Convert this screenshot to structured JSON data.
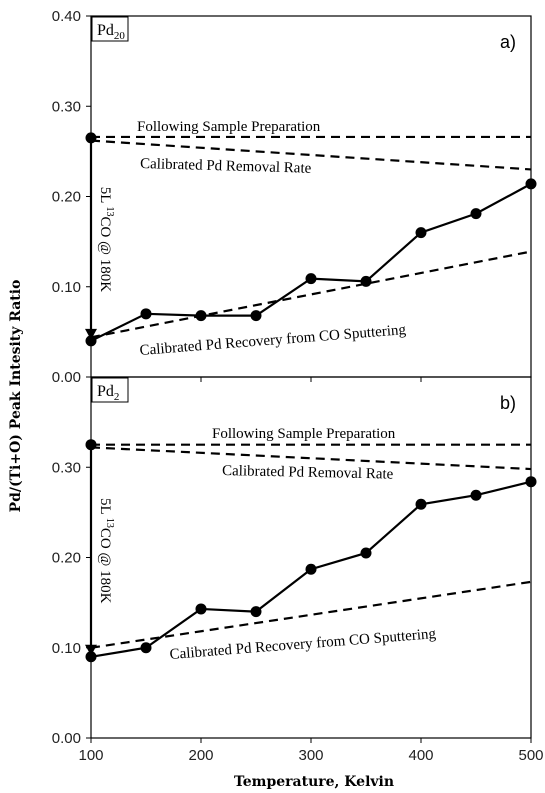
{
  "chart_data": [
    {
      "type": "line",
      "panel_label": "a)",
      "box_label": {
        "base": "Pd",
        "sub": "20"
      },
      "xlabel": "Temperature, Kelvin",
      "ylabel": "Pd/(Ti+O) Peak Intesity Ratio",
      "xlim": [
        100,
        500
      ],
      "ylim": [
        0,
        0.4
      ],
      "xticks": [
        "100",
        "200",
        "300",
        "400",
        "500"
      ],
      "yticks": [
        "0.00",
        "0.10",
        "0.20",
        "0.30",
        "0.40"
      ],
      "yticks_values": [
        0,
        0.1,
        0.2,
        0.3,
        0.4
      ],
      "series": [
        {
          "x": [
            100,
            100,
            150,
            200,
            250,
            300,
            350,
            400,
            450,
            500
          ],
          "y": [
            0.265,
            0.04,
            0.07,
            0.068,
            0.068,
            0.109,
            0.106,
            0.16,
            0.181,
            0.214
          ]
        }
      ],
      "reference_lines": [
        {
          "label": "Following Sample Preparation",
          "x": [
            100,
            500
          ],
          "y": [
            0.266,
            0.266
          ]
        },
        {
          "label": "Calibrated Pd Removal Rate",
          "x": [
            100,
            500
          ],
          "y": [
            0.262,
            0.23
          ]
        },
        {
          "label": "Calibrated Pd Recovery from CO Sputtering",
          "x": [
            100,
            500
          ],
          "y": [
            0.044,
            0.139
          ]
        }
      ],
      "arrow_annotation": {
        "prefix": "5L ",
        "sup": "13",
        "suffix": "CO @ 180K",
        "x": 100,
        "y_from": 0.265,
        "y_to": 0.04
      }
    },
    {
      "type": "line",
      "panel_label": "b)",
      "box_label": {
        "base": "Pd",
        "sub": "2"
      },
      "xlabel": "Temperature, Kelvin",
      "ylabel": "Pd/(Ti+O) Peak Intesity Ratio",
      "xlim": [
        100,
        500
      ],
      "ylim": [
        0,
        0.4
      ],
      "xticks": [
        "100",
        "200",
        "300",
        "400",
        "500"
      ],
      "yticks": [
        "0.00",
        "0.10",
        "0.20",
        "0.30"
      ],
      "yticks_values": [
        0,
        0.1,
        0.2,
        0.3
      ],
      "series": [
        {
          "x": [
            100,
            100,
            150,
            200,
            250,
            300,
            350,
            400,
            450,
            500
          ],
          "y": [
            0.325,
            0.09,
            0.1,
            0.143,
            0.14,
            0.187,
            0.205,
            0.259,
            0.269,
            0.284
          ]
        }
      ],
      "reference_lines": [
        {
          "label": "Following Sample Preparation",
          "x": [
            100,
            500
          ],
          "y": [
            0.325,
            0.325
          ]
        },
        {
          "label": "Calibrated Pd Removal Rate",
          "x": [
            100,
            500
          ],
          "y": [
            0.322,
            0.298
          ]
        },
        {
          "label": "Calibrated Pd Recovery from CO Sputtering",
          "x": [
            100,
            500
          ],
          "y": [
            0.1,
            0.173
          ]
        }
      ],
      "arrow_annotation": {
        "prefix": "5L ",
        "sup": "13",
        "suffix": "CO @ 180K",
        "x": 100,
        "y_from": 0.325,
        "y_to": 0.09
      }
    }
  ]
}
